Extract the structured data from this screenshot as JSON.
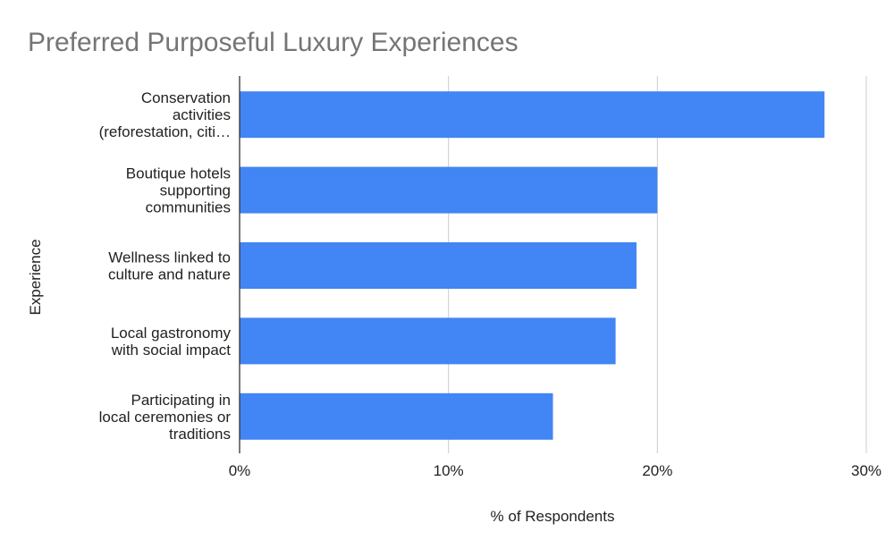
{
  "chart_data": {
    "type": "bar",
    "orientation": "horizontal",
    "title": "Preferred Purposeful Luxury Experiences",
    "xlabel": "% of Respondents",
    "ylabel": "Experience",
    "categories": [
      "Conservation\nactivities\n(reforestation, citi…",
      "Boutique hotels\nsupporting\ncommunities",
      "Wellness linked to\nculture and nature",
      "Local gastronomy\nwith social impact",
      "Participating in\nlocal ceremonies or\ntraditions"
    ],
    "values": [
      28,
      20,
      19,
      18,
      15
    ],
    "xlim": [
      0,
      30
    ],
    "xticks": [
      0,
      10,
      20,
      30
    ],
    "xtick_labels": [
      "0%",
      "10%",
      "20%",
      "30%"
    ],
    "grid": true,
    "legend": "none",
    "colors": {
      "bar": "#4285f4",
      "title": "#757575",
      "grid": "#cccccc",
      "axis": "#333333",
      "text": "#222222"
    }
  }
}
